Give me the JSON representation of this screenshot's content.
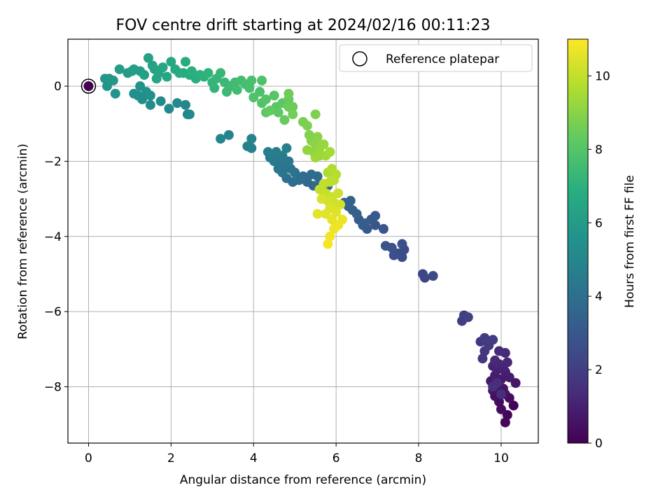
{
  "chart_data": {
    "type": "scatter",
    "title": "FOV centre drift starting at 2024/02/16 00:11:23",
    "xlabel": "Angular distance from reference (arcmin)",
    "ylabel": "Rotation from reference (arcmin)",
    "xlim": [
      -0.5,
      10.9
    ],
    "ylim": [
      -9.5,
      1.25
    ],
    "xticks": [
      0,
      2,
      4,
      6,
      8,
      10
    ],
    "yticks": [
      0,
      -2,
      -4,
      -6,
      -8
    ],
    "xtick_labels": [
      "0",
      "2",
      "4",
      "6",
      "8",
      "10"
    ],
    "ytick_labels": [
      "0",
      "−2",
      "−4",
      "−6",
      "−8"
    ],
    "grid": true,
    "legend": {
      "position": "top-right",
      "entries": [
        "Reference platepar"
      ]
    },
    "colorbar": {
      "label": "Hours from first FF file",
      "colormap": "viridis",
      "range": [
        0,
        11
      ],
      "ticks": [
        0,
        2,
        4,
        6,
        8,
        10
      ],
      "tick_labels": [
        "0",
        "2",
        "4",
        "6",
        "8",
        "10"
      ]
    },
    "reference_point": {
      "x": 0,
      "y": 0,
      "hours": 0
    },
    "series": [
      {
        "colour_by": "hours",
        "points": [
          [
            10.3,
            -8.5,
            0.1
          ],
          [
            10.1,
            -8.95,
            0.15
          ],
          [
            10.15,
            -8.75,
            0.2
          ],
          [
            10.0,
            -8.6,
            0.3
          ],
          [
            9.95,
            -8.4,
            0.35
          ],
          [
            10.2,
            -8.3,
            0.4
          ],
          [
            9.85,
            -8.25,
            0.45
          ],
          [
            10.1,
            -8.2,
            0.5
          ],
          [
            9.8,
            -8.1,
            0.55
          ],
          [
            10.05,
            -8.05,
            0.6
          ],
          [
            9.9,
            -8.0,
            0.65
          ],
          [
            10.35,
            -7.9,
            0.7
          ],
          [
            9.75,
            -7.85,
            0.75
          ],
          [
            10.0,
            -7.8,
            0.8
          ],
          [
            10.2,
            -7.75,
            0.85
          ],
          [
            9.85,
            -7.7,
            0.9
          ],
          [
            10.1,
            -7.6,
            0.95
          ],
          [
            9.9,
            -7.55,
            1.0
          ],
          [
            10.05,
            -7.5,
            1.05
          ],
          [
            9.8,
            -7.45,
            1.1
          ],
          [
            9.95,
            -7.4,
            1.15
          ],
          [
            10.15,
            -7.35,
            1.2
          ],
          [
            9.85,
            -7.3,
            1.25
          ],
          [
            10.1,
            -7.1,
            1.3
          ],
          [
            9.95,
            -7.05,
            1.35
          ],
          [
            9.9,
            -7.9,
            1.4
          ],
          [
            10.0,
            -8.2,
            1.45
          ],
          [
            9.8,
            -8.0,
            1.5
          ],
          [
            9.55,
            -7.25,
            1.7
          ],
          [
            9.6,
            -7.05,
            1.75
          ],
          [
            9.5,
            -6.8,
            1.8
          ],
          [
            9.7,
            -6.9,
            1.85
          ],
          [
            9.6,
            -6.7,
            1.9
          ],
          [
            9.8,
            -6.75,
            1.95
          ],
          [
            9.05,
            -6.25,
            2.0
          ],
          [
            9.1,
            -6.1,
            2.05
          ],
          [
            9.2,
            -6.15,
            2.1
          ],
          [
            8.1,
            -5.0,
            2.3
          ],
          [
            8.15,
            -5.1,
            2.35
          ],
          [
            8.35,
            -5.05,
            2.4
          ],
          [
            7.6,
            -4.55,
            2.5
          ],
          [
            7.65,
            -4.35,
            2.55
          ],
          [
            7.5,
            -4.45,
            2.6
          ],
          [
            7.4,
            -4.5,
            2.65
          ],
          [
            7.6,
            -4.2,
            2.7
          ],
          [
            7.35,
            -4.3,
            2.75
          ],
          [
            7.2,
            -4.25,
            2.8
          ],
          [
            7.15,
            -3.8,
            2.9
          ],
          [
            6.95,
            -3.7,
            2.95
          ],
          [
            6.85,
            -3.55,
            3.0
          ],
          [
            6.95,
            -3.45,
            3.05
          ],
          [
            6.75,
            -3.8,
            3.1
          ],
          [
            6.65,
            -3.7,
            3.15
          ],
          [
            6.55,
            -3.55,
            3.2
          ],
          [
            6.7,
            -3.65,
            3.25
          ],
          [
            6.5,
            -3.4,
            3.3
          ],
          [
            6.4,
            -3.3,
            3.35
          ],
          [
            6.3,
            -3.2,
            3.4
          ],
          [
            6.35,
            -3.05,
            3.45
          ],
          [
            6.2,
            -3.1,
            3.5
          ],
          [
            5.8,
            -2.65,
            3.6
          ],
          [
            5.6,
            -2.6,
            3.65
          ],
          [
            5.45,
            -2.65,
            3.7
          ],
          [
            5.3,
            -2.55,
            3.75
          ],
          [
            5.55,
            -2.4,
            3.8
          ],
          [
            5.4,
            -2.35,
            3.85
          ],
          [
            5.2,
            -2.4,
            3.9
          ],
          [
            5.1,
            -2.5,
            3.95
          ],
          [
            4.95,
            -2.55,
            4.0
          ],
          [
            4.8,
            -2.45,
            4.05
          ],
          [
            5.0,
            -2.3,
            4.1
          ],
          [
            4.9,
            -2.2,
            4.15
          ],
          [
            4.7,
            -2.3,
            4.2
          ],
          [
            4.6,
            -2.2,
            4.25
          ],
          [
            4.75,
            -2.1,
            4.3
          ],
          [
            4.85,
            -2.0,
            4.35
          ],
          [
            4.65,
            -1.95,
            4.4
          ],
          [
            4.5,
            -2.0,
            4.45
          ],
          [
            4.4,
            -1.9,
            4.5
          ],
          [
            4.7,
            -1.85,
            4.55
          ],
          [
            4.55,
            -1.75,
            4.6
          ],
          [
            4.35,
            -1.75,
            4.65
          ],
          [
            4.8,
            -1.65,
            4.7
          ],
          [
            3.95,
            -1.65,
            4.75
          ],
          [
            3.85,
            -1.6,
            4.8
          ],
          [
            3.95,
            -1.4,
            4.85
          ],
          [
            3.4,
            -1.3,
            4.9
          ],
          [
            3.2,
            -1.4,
            4.95
          ],
          [
            2.4,
            -0.75,
            5.0
          ],
          [
            2.35,
            -0.5,
            5.05
          ],
          [
            2.45,
            -0.75,
            5.1
          ],
          [
            2.15,
            -0.45,
            5.15
          ],
          [
            1.95,
            -0.6,
            5.2
          ],
          [
            1.75,
            -0.4,
            5.25
          ],
          [
            1.5,
            -0.5,
            5.3
          ],
          [
            1.3,
            -0.35,
            5.35
          ],
          [
            1.2,
            -0.25,
            5.4
          ],
          [
            1.1,
            -0.2,
            5.45
          ],
          [
            1.5,
            -0.25,
            5.5
          ],
          [
            1.4,
            -0.15,
            5.55
          ],
          [
            1.25,
            0.0,
            5.6
          ],
          [
            0.65,
            -0.2,
            5.65
          ],
          [
            0.45,
            0.0,
            5.7
          ],
          [
            0.4,
            0.2,
            5.75
          ],
          [
            0.6,
            0.15,
            5.8
          ],
          [
            0.5,
            0.2,
            5.85
          ],
          [
            0.95,
            0.35,
            5.95
          ],
          [
            0.75,
            0.45,
            6.0
          ],
          [
            1.05,
            0.4,
            6.05
          ],
          [
            1.1,
            0.45,
            6.1
          ],
          [
            1.25,
            0.4,
            6.15
          ],
          [
            1.35,
            0.3,
            6.2
          ],
          [
            1.55,
            0.55,
            6.25
          ],
          [
            1.45,
            0.75,
            6.3
          ],
          [
            1.6,
            0.45,
            6.35
          ],
          [
            1.7,
            0.35,
            6.4
          ],
          [
            1.65,
            0.2,
            6.45
          ],
          [
            1.8,
            0.5,
            6.5
          ],
          [
            1.9,
            0.25,
            6.55
          ],
          [
            2.0,
            0.65,
            6.6
          ],
          [
            2.1,
            0.45,
            6.65
          ],
          [
            2.2,
            0.35,
            6.7
          ],
          [
            2.35,
            0.65,
            6.75
          ],
          [
            2.3,
            0.35,
            6.8
          ],
          [
            2.45,
            0.3,
            6.85
          ],
          [
            2.6,
            0.2,
            6.9
          ],
          [
            2.5,
            0.4,
            6.95
          ],
          [
            2.7,
            0.3,
            7.0
          ],
          [
            2.8,
            0.25,
            7.05
          ],
          [
            2.9,
            0.35,
            7.1
          ],
          [
            3.0,
            0.1,
            7.15
          ],
          [
            3.05,
            -0.05,
            7.2
          ],
          [
            3.1,
            0.2,
            7.25
          ],
          [
            3.2,
            0.35,
            7.3
          ],
          [
            3.3,
            0.1,
            7.35
          ],
          [
            3.35,
            -0.15,
            7.4
          ],
          [
            3.45,
            0.0,
            7.45
          ],
          [
            3.55,
            0.1,
            7.5
          ],
          [
            3.6,
            -0.1,
            7.55
          ],
          [
            3.7,
            0.15,
            7.6
          ],
          [
            3.8,
            0.05,
            7.65
          ],
          [
            3.9,
            -0.05,
            7.7
          ],
          [
            3.95,
            0.15,
            7.75
          ],
          [
            4.15,
            -0.15,
            7.8
          ],
          [
            4.2,
            0.15,
            7.85
          ],
          [
            4.0,
            -0.3,
            7.9
          ],
          [
            4.2,
            -0.45,
            7.95
          ],
          [
            4.3,
            -0.35,
            8.0
          ],
          [
            4.5,
            -0.25,
            8.05
          ],
          [
            4.55,
            -0.55,
            8.1
          ],
          [
            4.7,
            -0.45,
            8.15
          ],
          [
            4.6,
            -0.7,
            8.2
          ],
          [
            4.3,
            -0.7,
            8.25
          ],
          [
            4.4,
            -0.65,
            8.3
          ],
          [
            4.85,
            -0.35,
            8.35
          ],
          [
            4.75,
            -0.9,
            8.4
          ],
          [
            4.85,
            -0.55,
            8.45
          ],
          [
            4.95,
            -0.55,
            8.5
          ],
          [
            4.85,
            -0.2,
            8.55
          ],
          [
            4.95,
            -0.75,
            8.6
          ],
          [
            5.2,
            -0.95,
            8.7
          ],
          [
            5.3,
            -1.05,
            8.75
          ],
          [
            5.5,
            -0.75,
            8.8
          ],
          [
            5.35,
            -1.3,
            8.85
          ],
          [
            5.4,
            -1.45,
            8.9
          ],
          [
            5.55,
            -1.35,
            9.0
          ],
          [
            5.5,
            -1.55,
            9.05
          ],
          [
            5.45,
            -1.75,
            9.1
          ],
          [
            5.3,
            -1.7,
            9.15
          ],
          [
            5.6,
            -1.65,
            9.2
          ],
          [
            5.7,
            -1.55,
            9.25
          ],
          [
            5.6,
            -1.85,
            9.3
          ],
          [
            5.5,
            -1.9,
            9.35
          ],
          [
            5.75,
            -1.85,
            9.4
          ],
          [
            5.85,
            -1.75,
            9.45
          ],
          [
            5.8,
            -2.3,
            9.6
          ],
          [
            5.9,
            -2.2,
            9.7
          ],
          [
            6.0,
            -2.35,
            9.8
          ],
          [
            5.95,
            -2.5,
            9.85
          ],
          [
            5.85,
            -2.55,
            9.9
          ],
          [
            5.7,
            -2.6,
            9.95
          ],
          [
            5.6,
            -2.75,
            10.0
          ],
          [
            5.75,
            -2.85,
            10.05
          ],
          [
            5.9,
            -2.95,
            10.1
          ],
          [
            6.05,
            -2.85,
            10.15
          ],
          [
            5.8,
            -3.05,
            10.2
          ],
          [
            5.95,
            -3.1,
            10.25
          ],
          [
            6.1,
            -3.15,
            10.3
          ],
          [
            5.65,
            -3.0,
            10.35
          ],
          [
            5.85,
            -3.25,
            10.4
          ],
          [
            6.0,
            -3.35,
            10.45
          ],
          [
            5.75,
            -3.4,
            10.5
          ],
          [
            5.55,
            -3.4,
            10.55
          ],
          [
            5.9,
            -3.55,
            10.6
          ],
          [
            6.15,
            -3.55,
            10.65
          ],
          [
            6.05,
            -3.7,
            10.7
          ],
          [
            5.95,
            -3.8,
            10.75
          ],
          [
            5.85,
            -4.0,
            10.8
          ],
          [
            5.8,
            -4.2,
            10.85
          ]
        ]
      }
    ]
  }
}
